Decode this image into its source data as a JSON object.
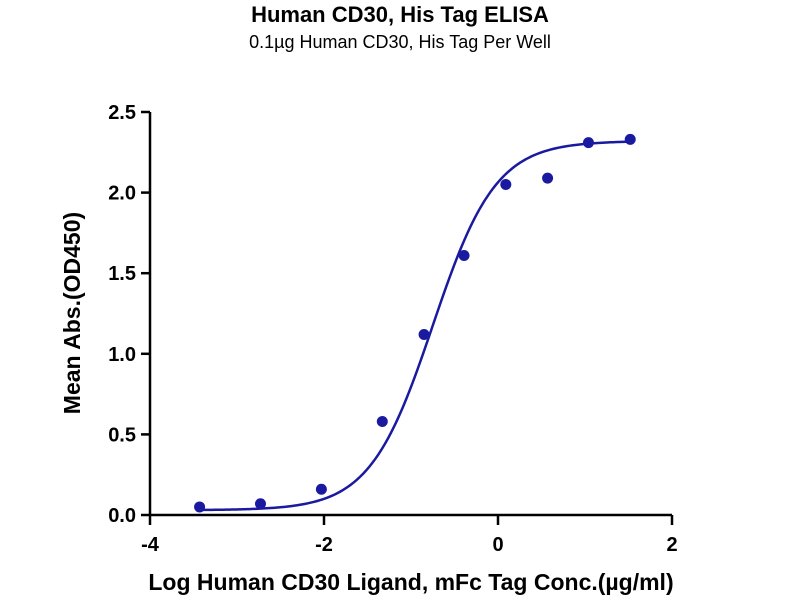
{
  "chart_data": {
    "type": "scatter",
    "title": "Human CD30, His Tag ELISA",
    "subtitle": "0.1µg Human CD30, His Tag Per Well",
    "xlabel": "Log Human CD30 Ligand, mFc Tag Conc.(µg/ml)",
    "ylabel": "Mean Abs.(OD450)",
    "xlim": [
      -4,
      2
    ],
    "ylim": [
      0,
      2.5
    ],
    "xticks": [
      -4,
      -2,
      0,
      2
    ],
    "xtick_labels": [
      "-4",
      "-2",
      "0",
      "2"
    ],
    "yticks": [
      0,
      0.5,
      1.0,
      1.5,
      2.0,
      2.5
    ],
    "ytick_labels": [
      "0.0",
      "0.5",
      "1.0",
      "1.5",
      "2.0",
      "2.5"
    ],
    "grid": false,
    "color": "#1a1aa0",
    "points": {
      "x": [
        -3.43,
        -2.73,
        -2.03,
        -1.33,
        -0.85,
        -0.39,
        0.09,
        0.57,
        1.04,
        1.52
      ],
      "y": [
        0.05,
        0.07,
        0.16,
        0.58,
        1.12,
        1.61,
        2.05,
        2.09,
        2.31,
        2.33
      ]
    },
    "fit_curve": {
      "type": "4PL",
      "bottom": 0.03,
      "top": 2.32,
      "log_ec50": -0.75,
      "hill_slope": 1.2,
      "x_range": [
        -3.43,
        1.52
      ]
    }
  }
}
